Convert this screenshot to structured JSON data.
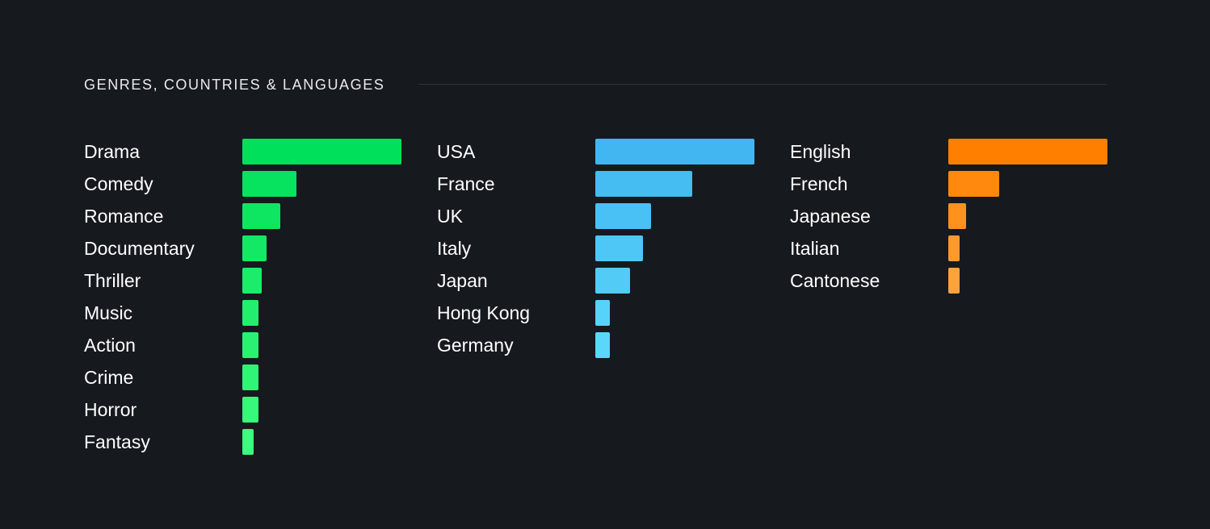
{
  "section": {
    "title": "GENRES, COUNTRIES & LANGUAGES"
  },
  "chart_data": [
    {
      "type": "bar",
      "orientation": "horizontal",
      "name": "Genres",
      "color_start": "#00e05a",
      "color_end": "#3dfb7e",
      "categories": [
        "Drama",
        "Comedy",
        "Romance",
        "Documentary",
        "Thriller",
        "Music",
        "Action",
        "Crime",
        "Horror",
        "Fantasy"
      ],
      "values": [
        100,
        34,
        24,
        15,
        12,
        10,
        10,
        10,
        10,
        7
      ]
    },
    {
      "type": "bar",
      "orientation": "horizontal",
      "name": "Countries",
      "color_start": "#41b6f0",
      "color_end": "#5bd7fb",
      "categories": [
        "USA",
        "France",
        "UK",
        "Italy",
        "Japan",
        "Hong Kong",
        "Germany"
      ],
      "values": [
        100,
        61,
        35,
        30,
        22,
        9,
        9
      ]
    },
    {
      "type": "bar",
      "orientation": "horizontal",
      "name": "Languages",
      "color_start": "#ff7f00",
      "color_end": "#ffa23d",
      "categories": [
        "English",
        "French",
        "Japanese",
        "Italian",
        "Cantonese"
      ],
      "values": [
        100,
        32,
        11,
        7,
        7
      ]
    }
  ]
}
